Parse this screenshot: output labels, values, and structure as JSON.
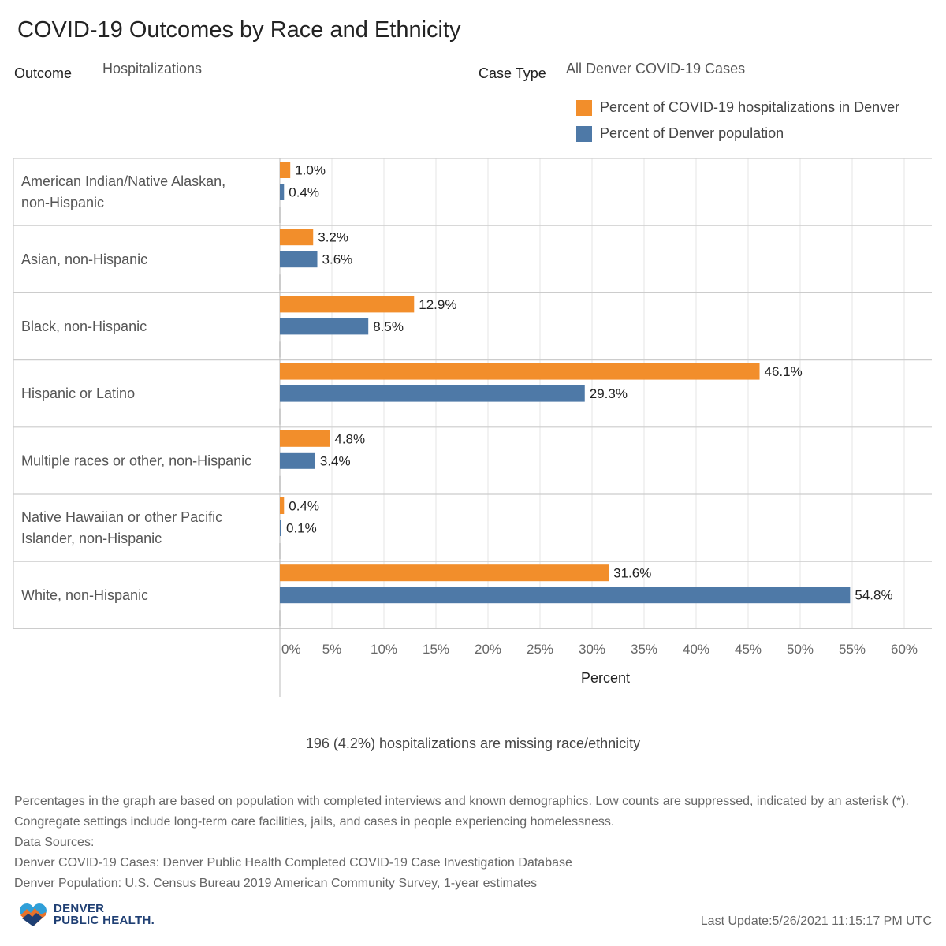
{
  "title": "COVID-19 Outcomes by Race and Ethnicity",
  "filters": {
    "outcome_label": "Outcome",
    "outcome_value": "Hospitalizations",
    "case_type_label": "Case Type",
    "case_type_value": "All Denver COVID-19 Cases"
  },
  "colors": {
    "hospitalizations": "#f28e2b",
    "population": "#4e79a7",
    "gridline": "#e6e6e6",
    "row_separator": "#cccccc"
  },
  "chart_data": {
    "type": "bar",
    "orientation": "horizontal",
    "categories": [
      [
        "American Indian/Native Alaskan,",
        "non-Hispanic"
      ],
      [
        "Asian, non-Hispanic"
      ],
      [
        "Black, non-Hispanic"
      ],
      [
        "Hispanic or Latino"
      ],
      [
        "Multiple races or other, non-Hispanic"
      ],
      [
        "Native Hawaiian or other Pacific",
        "Islander, non-Hispanic"
      ],
      [
        "White, non-Hispanic"
      ]
    ],
    "series": [
      {
        "name": "Percent of COVID-19 hospitalizations in Denver",
        "values": [
          1.0,
          3.2,
          12.9,
          46.1,
          4.8,
          0.4,
          31.6
        ],
        "labels": [
          "1.0%",
          "3.2%",
          "12.9%",
          "46.1%",
          "4.8%",
          "0.4%",
          "31.6%"
        ]
      },
      {
        "name": "Percent of Denver population",
        "values": [
          0.4,
          3.6,
          8.5,
          29.3,
          3.4,
          0.1,
          54.8
        ],
        "labels": [
          "0.4%",
          "3.6%",
          "8.5%",
          "29.3%",
          "3.4%",
          "0.1%",
          "54.8%"
        ]
      }
    ],
    "xlabel": "Percent",
    "xlim": [
      0,
      62
    ],
    "ticks": [
      0,
      5,
      10,
      15,
      20,
      25,
      30,
      35,
      40,
      45,
      50,
      55,
      60
    ],
    "tick_labels": [
      "0%",
      "5%",
      "10%",
      "15%",
      "20%",
      "25%",
      "30%",
      "35%",
      "40%",
      "45%",
      "50%",
      "55%",
      "60%"
    ],
    "grid": true,
    "legend_position": "top-right"
  },
  "missing_note": "196 (4.2%) hospitalizations are missing race/ethnicity",
  "footnote": "Percentages in the graph are based on population with completed interviews and known demographics. Low counts are suppressed, indicated by an asterisk (*). Congregate settings include long-term care facilities, jails, and cases in people experiencing homelessness.",
  "sources": {
    "heading": "Data Sources:",
    "cases": "Denver COVID-19 Cases: Denver Public Health Completed COVID-19 Case Investigation Database",
    "population": "Denver Population: U.S. Census Bureau 2019 American Community Survey, 1-year estimates"
  },
  "logo": {
    "line1": "DENVER",
    "line2": "PUBLIC HEALTH."
  },
  "last_update": "Last Update:5/26/2021 11:15:17 PM UTC"
}
